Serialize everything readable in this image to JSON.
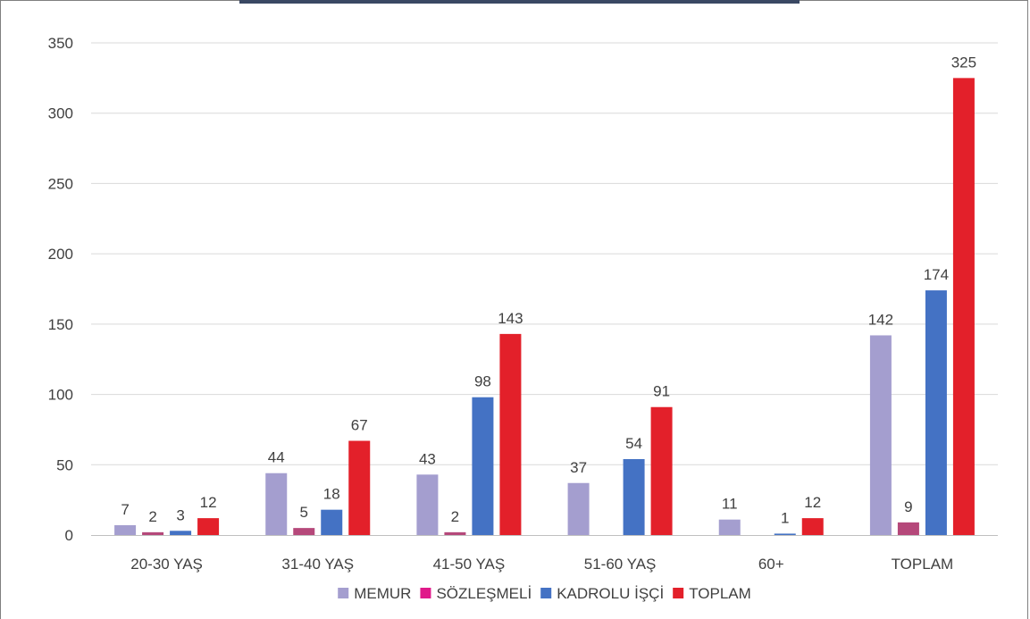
{
  "chart_data": {
    "type": "bar",
    "categories": [
      "20-30 YAŞ",
      "31-40 YAŞ",
      "41-50 YAŞ",
      "51-60 YAŞ",
      "60+",
      "TOPLAM"
    ],
    "series": [
      {
        "name": "MEMUR",
        "color": "#a49ecf",
        "values": [
          7,
          44,
          43,
          37,
          11,
          142
        ]
      },
      {
        "name": "SÖZLEŞMELİ",
        "color": "#b5487a",
        "values": [
          2,
          5,
          2,
          0,
          0,
          9
        ]
      },
      {
        "name": "KADROLU İŞÇİ",
        "color": "#4472c4",
        "values": [
          3,
          18,
          98,
          54,
          1,
          174
        ]
      },
      {
        "name": "TOPLAM",
        "color": "#e3202a",
        "values": [
          12,
          67,
          143,
          91,
          12,
          325
        ]
      }
    ],
    "data_labels": [
      [
        "7",
        "44",
        "43",
        "37",
        "11",
        "142"
      ],
      [
        "2",
        "5",
        "2",
        "",
        "",
        "9"
      ],
      [
        "3",
        "18",
        "98",
        "54",
        "1",
        "174"
      ],
      [
        "12",
        "67",
        "143",
        "91",
        "12",
        "325"
      ]
    ],
    "ylim": [
      0,
      350
    ],
    "yticks": [
      "0",
      "50",
      "100",
      "150",
      "200",
      "250",
      "300",
      "350"
    ],
    "grid": true,
    "legend_position": "bottom",
    "legend_colors": [
      "#a49ecf",
      "#e0198a",
      "#4472c4",
      "#e3202a"
    ]
  }
}
